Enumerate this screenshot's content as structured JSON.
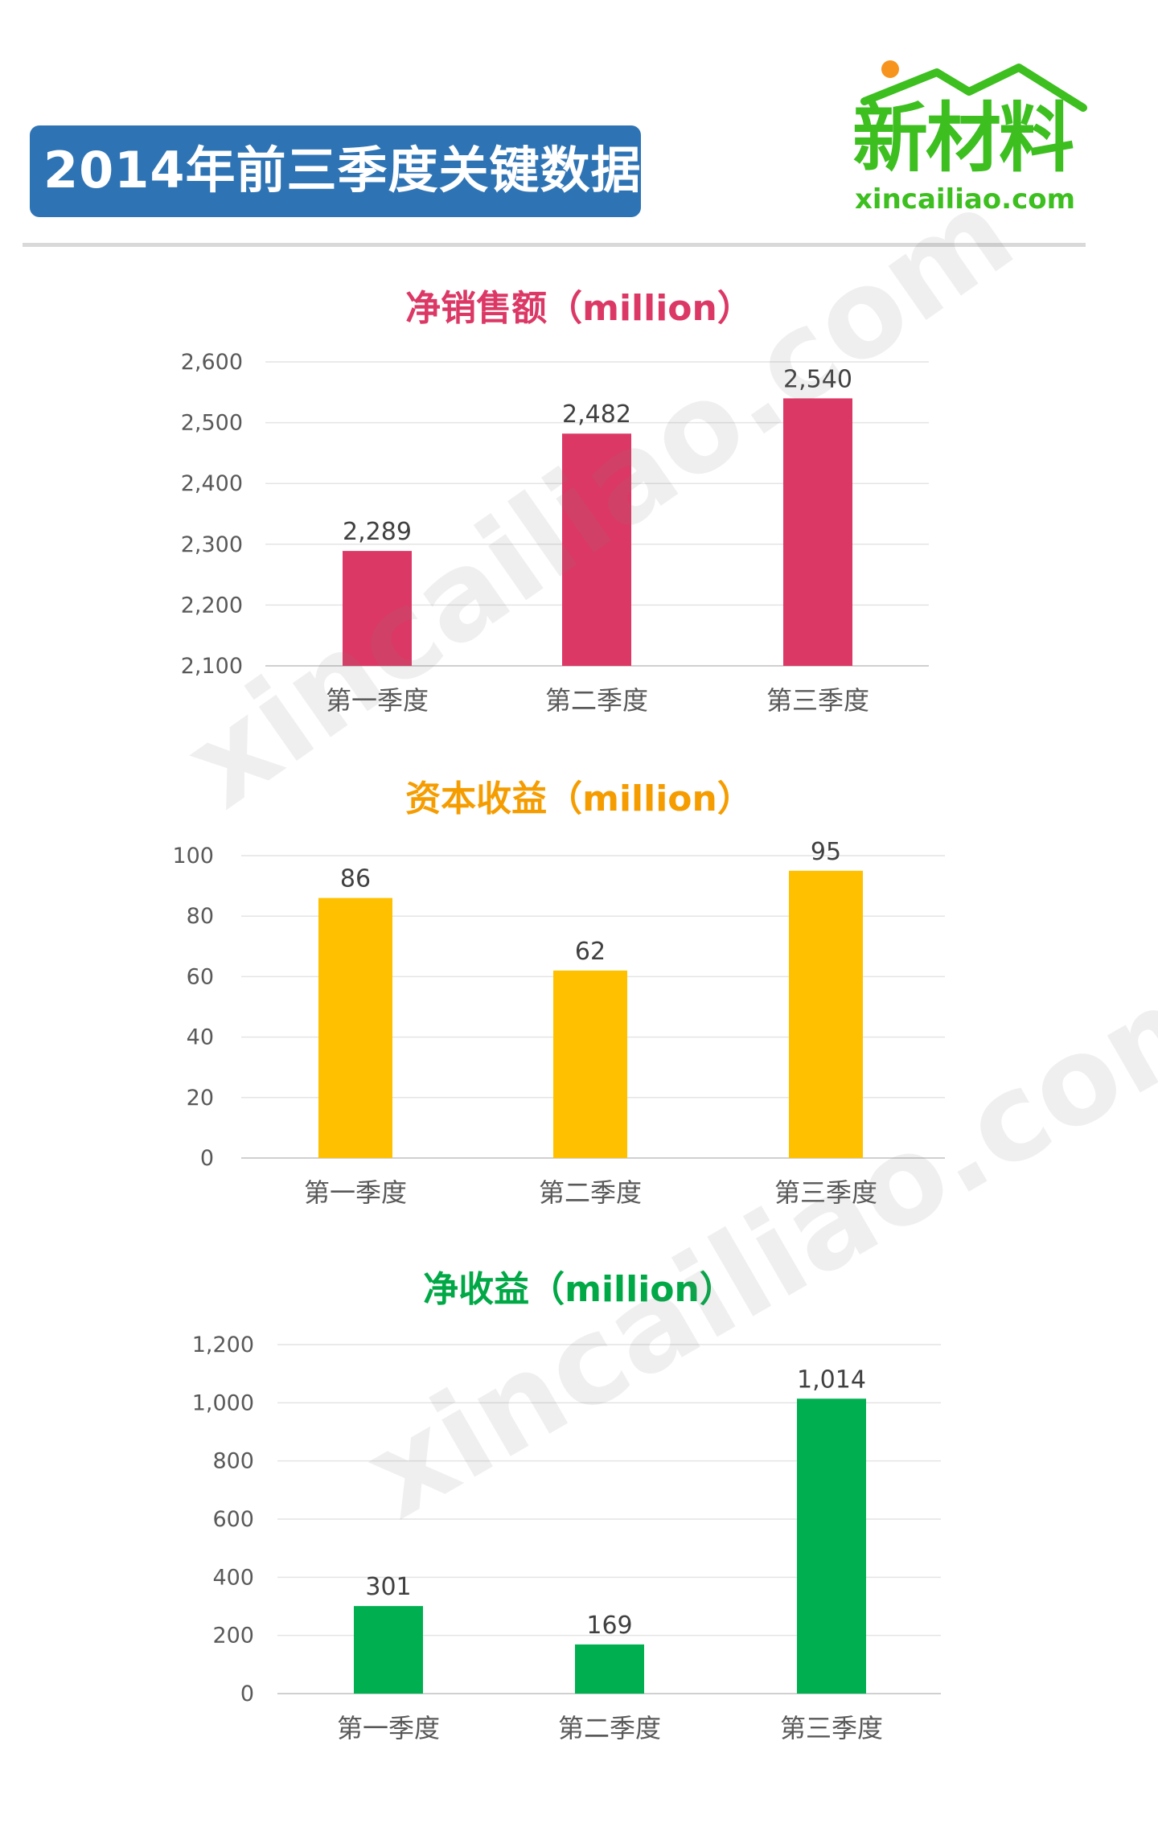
{
  "header": {
    "title": "2014年前三季度关键数据",
    "logo_text": "新材料",
    "logo_url": "xincailiao.com"
  },
  "watermark": "xincailiao.com",
  "colors": {
    "banner": "#2e74b5",
    "logo_green": "#3cbf1f",
    "net_sales": "#dc3865",
    "capital_income": "#ffc000",
    "net_income": "#00b050"
  },
  "chart_data": [
    {
      "type": "bar",
      "title": "净销售额（million）",
      "categories": [
        "第一季度",
        "第二季度",
        "第三季度"
      ],
      "values": [
        2289,
        2482,
        2540
      ],
      "value_labels": [
        "2,289",
        "2,482",
        "2,540"
      ],
      "ylim": [
        2100,
        2600
      ],
      "yticks": [
        "2,100",
        "2,200",
        "2,300",
        "2,400",
        "2,500",
        "2,600"
      ],
      "ytick_values": [
        2100,
        2200,
        2300,
        2400,
        2500,
        2600
      ],
      "grid": true
    },
    {
      "type": "bar",
      "title": "资本收益（million）",
      "categories": [
        "第一季度",
        "第二季度",
        "第三季度"
      ],
      "values": [
        86,
        62,
        95
      ],
      "value_labels": [
        "86",
        "62",
        "95"
      ],
      "ylim": [
        0,
        100
      ],
      "yticks": [
        "0",
        "20",
        "40",
        "60",
        "80",
        "100"
      ],
      "ytick_values": [
        0,
        20,
        40,
        60,
        80,
        100
      ],
      "grid": true
    },
    {
      "type": "bar",
      "title": "净收益（million）",
      "categories": [
        "第一季度",
        "第二季度",
        "第三季度"
      ],
      "values": [
        301,
        169,
        1014
      ],
      "value_labels": [
        "301",
        "169",
        "1,014"
      ],
      "ylim": [
        0,
        1200
      ],
      "yticks": [
        "0",
        "200",
        "400",
        "600",
        "800",
        "1,000",
        "1,200"
      ],
      "ytick_values": [
        0,
        200,
        400,
        600,
        800,
        1000,
        1200
      ],
      "grid": true
    }
  ]
}
